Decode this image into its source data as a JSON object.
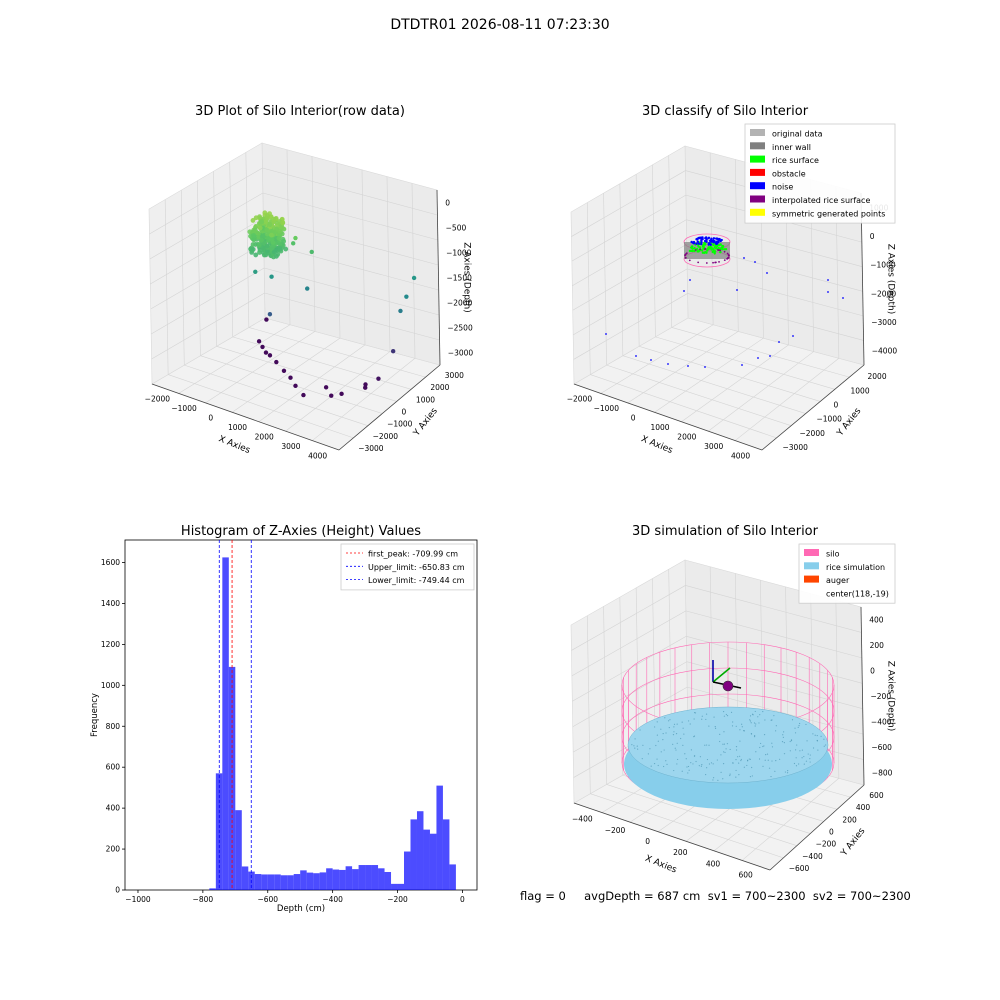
{
  "figure_title": "DTDTR01 2026-08-11 07:23:30",
  "status_text": "flag = 0     avgDepth = 687 cm  sv1 = 700~2300  sv2 = 700~2300",
  "colors": {
    "inner_wall": "#808080",
    "rice_surface": "#00ff00",
    "obstacle": "#ff0000",
    "noise": "#0000ff",
    "interpolated": "#800080",
    "symmetric": "#ffff00",
    "original": "#b3b3b3",
    "silo": "#ff69b4",
    "rice_sim": "#87ceeb",
    "auger": "#ff4500",
    "hist_bar": "#0000ff"
  },
  "chart_data": [
    {
      "type": "scatter",
      "projection": "3d",
      "title": "3D Plot of Silo Interior(row data)",
      "xlabel": "X Axies",
      "ylabel": "Y Axies",
      "zlabel": "Z Axies (Depth)",
      "xticks": [
        "−2000",
        "−1000",
        "0",
        "1000",
        "2000",
        "3000",
        "4000"
      ],
      "yticks": [
        "3000",
        "2000",
        "1000",
        "0",
        "−1000",
        "−2000",
        "−3000"
      ],
      "zticks": [
        "0",
        "−500",
        "−1000",
        "−1500",
        "−2000",
        "−2500",
        "−3000"
      ],
      "xlim": [
        -2200,
        4200
      ],
      "ylim": [
        -3500,
        3200
      ],
      "zlim": [
        -3600,
        200
      ],
      "grid": true,
      "colormap": "viridis",
      "dense_cluster": {
        "x": [
          -600,
          300
        ],
        "y": [
          -400,
          500
        ],
        "z": [
          -1100,
          -400
        ]
      },
      "points": [
        {
          "x": -1900,
          "y": 2800,
          "z": -3500
        },
        {
          "x": -1200,
          "y": 1200,
          "z": -3500
        },
        {
          "x": -900,
          "y": 900,
          "z": -3500
        },
        {
          "x": -600,
          "y": 600,
          "z": -3500
        },
        {
          "x": -400,
          "y": 500,
          "z": -3500
        },
        {
          "x": 0,
          "y": 200,
          "z": -3500
        },
        {
          "x": 500,
          "y": -200,
          "z": -3500
        },
        {
          "x": 900,
          "y": -500,
          "z": -3500
        },
        {
          "x": 1300,
          "y": -900,
          "z": -3500
        },
        {
          "x": 1800,
          "y": -1300,
          "z": -3500
        },
        {
          "x": 2100,
          "y": -400,
          "z": -3500
        },
        {
          "x": 2500,
          "y": -800,
          "z": -3500
        },
        {
          "x": 2700,
          "y": -500,
          "z": -3500
        },
        {
          "x": 3000,
          "y": 500,
          "z": -3500
        },
        {
          "x": 3100,
          "y": 300,
          "z": -3500
        },
        {
          "x": 3300,
          "y": 800,
          "z": -3400
        },
        {
          "x": 3400,
          "y": 1600,
          "z": -3000
        },
        {
          "x": 3800,
          "y": 1400,
          "z": -2000
        },
        {
          "x": 3800,
          "y": 1800,
          "z": -1800
        },
        {
          "x": 3700,
          "y": 2500,
          "z": -1600
        },
        {
          "x": 500,
          "y": 500,
          "z": -900
        },
        {
          "x": 700,
          "y": 300,
          "z": -700
        },
        {
          "x": 1100,
          "y": 600,
          "z": -1000
        },
        {
          "x": -400,
          "y": -300,
          "z": -1500
        },
        {
          "x": 0,
          "y": 0,
          "z": -1600
        },
        {
          "x": 800,
          "y": 800,
          "z": -1900
        },
        {
          "x": -200,
          "y": 200,
          "z": -2500
        }
      ]
    },
    {
      "type": "scatter",
      "projection": "3d",
      "title": "3D classify of Silo Interior",
      "xlabel": "X Axies",
      "ylabel": "Y Axies",
      "zlabel": "Z Axies (Depth)",
      "xticks": [
        "−2000",
        "−1000",
        "0",
        "1000",
        "2000",
        "3000",
        "4000"
      ],
      "yticks": [
        "2000",
        "1000",
        "0",
        "−1000",
        "−2000",
        "−3000"
      ],
      "zticks": [
        "1000",
        "0",
        "−1000",
        "−2000",
        "−3000",
        "−4000"
      ],
      "legend": {
        "position": "upper right",
        "entries": [
          {
            "label": "original data",
            "color": "#b3b3b3"
          },
          {
            "label": "inner wall",
            "color": "#808080"
          },
          {
            "label": "rice surface",
            "color": "#00ff00"
          },
          {
            "label": "obstacle",
            "color": "#ff0000"
          },
          {
            "label": "noise",
            "color": "#0000ff"
          },
          {
            "label": "interpolated rice surface",
            "color": "#800080"
          },
          {
            "label": "symmetric generated points",
            "color": "#ffff00"
          }
        ]
      },
      "grid": true
    },
    {
      "type": "bar",
      "title": "Histogram of Z-Axies (Height) Values",
      "xlabel": "Depth (cm)",
      "ylabel": "Frequency",
      "xlim": [
        -1040,
        45
      ],
      "ylim": [
        0,
        1710
      ],
      "xticks": [
        "−1000",
        "−800",
        "−600",
        "−400",
        "−200",
        "0"
      ],
      "yticks": [
        "0",
        "200",
        "400",
        "600",
        "800",
        "1000",
        "1200",
        "1400",
        "1600"
      ],
      "bin_width": 20,
      "bins": [
        {
          "x": -760,
          "value": 8
        },
        {
          "x": -740,
          "value": 570
        },
        {
          "x": -720,
          "value": 1625
        },
        {
          "x": -700,
          "value": 1090
        },
        {
          "x": -680,
          "value": 390
        },
        {
          "x": -660,
          "value": 115
        },
        {
          "x": -640,
          "value": 90
        },
        {
          "x": -620,
          "value": 78
        },
        {
          "x": -600,
          "value": 76
        },
        {
          "x": -580,
          "value": 76
        },
        {
          "x": -560,
          "value": 76
        },
        {
          "x": -540,
          "value": 72
        },
        {
          "x": -520,
          "value": 72
        },
        {
          "x": -500,
          "value": 78
        },
        {
          "x": -480,
          "value": 96
        },
        {
          "x": -460,
          "value": 85
        },
        {
          "x": -440,
          "value": 82
        },
        {
          "x": -420,
          "value": 86
        },
        {
          "x": -400,
          "value": 106
        },
        {
          "x": -380,
          "value": 100
        },
        {
          "x": -360,
          "value": 98
        },
        {
          "x": -340,
          "value": 116
        },
        {
          "x": -320,
          "value": 102
        },
        {
          "x": -300,
          "value": 122
        },
        {
          "x": -280,
          "value": 122
        },
        {
          "x": -260,
          "value": 122
        },
        {
          "x": -240,
          "value": 106
        },
        {
          "x": -220,
          "value": 88
        },
        {
          "x": -200,
          "value": 30
        },
        {
          "x": -180,
          "value": 30
        },
        {
          "x": -160,
          "value": 188
        },
        {
          "x": -140,
          "value": 345
        },
        {
          "x": -120,
          "value": 385
        },
        {
          "x": -100,
          "value": 295
        },
        {
          "x": -80,
          "value": 275
        },
        {
          "x": -60,
          "value": 510
        },
        {
          "x": -40,
          "value": 345
        },
        {
          "x": -20,
          "value": 125
        }
      ],
      "vlines": [
        {
          "label": "first_peak: -709.99 cm",
          "x": -709.99,
          "color": "#ff0000"
        },
        {
          "label": "Upper_limit: -650.83 cm",
          "x": -650.83,
          "color": "#0000ff"
        },
        {
          "label": "Lower_limit: -749.44 cm",
          "x": -749.44,
          "color": "#0000ff"
        }
      ],
      "legend": {
        "position": "upper right"
      }
    },
    {
      "type": "scatter",
      "projection": "3d",
      "title": "3D simulation of Silo Interior",
      "xlabel": "X Axies",
      "ylabel": "Y Axies",
      "zlabel": "Z Axies (Depth)",
      "xticks": [
        "−400",
        "−200",
        "0",
        "200",
        "400",
        "600"
      ],
      "yticks": [
        "600",
        "400",
        "200",
        "0",
        "−200",
        "−400",
        "−600"
      ],
      "zticks": [
        "400",
        "200",
        "0",
        "−200",
        "−400",
        "−600",
        "−800"
      ],
      "legend": {
        "position": "upper right",
        "entries": [
          {
            "label": "silo",
            "color": "#ff69b4"
          },
          {
            "label": "rice simulation",
            "color": "#87ceeb"
          },
          {
            "label": "auger",
            "color": "#ff4500"
          },
          {
            "label": "center(118,-19)",
            "color": ""
          }
        ]
      },
      "grid": true
    }
  ]
}
